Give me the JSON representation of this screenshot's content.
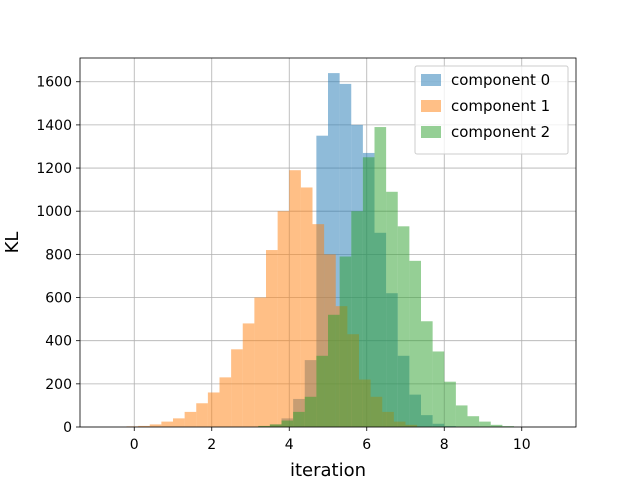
{
  "chart_data": {
    "type": "bar",
    "histogram": true,
    "title": "",
    "xlabel": "iteration",
    "ylabel": "KL",
    "xlim": [
      -1.4,
      11.4
    ],
    "ylim": [
      0,
      1710
    ],
    "xticks": [
      0,
      2,
      4,
      6,
      8,
      10
    ],
    "yticks": [
      0,
      200,
      400,
      600,
      800,
      1000,
      1200,
      1400,
      1600
    ],
    "grid": true,
    "legend_position": "top-right",
    "bin_width": 0.3,
    "series": [
      {
        "name": "component 0",
        "color": "#1f77b4",
        "alpha": 0.5,
        "bins": [
          {
            "x0": 3.2,
            "count": 3
          },
          {
            "x0": 3.5,
            "count": 12
          },
          {
            "x0": 3.8,
            "count": 40
          },
          {
            "x0": 4.1,
            "count": 130
          },
          {
            "x0": 4.4,
            "count": 310
          },
          {
            "x0": 4.7,
            "count": 1350
          },
          {
            "x0": 5.0,
            "count": 1640
          },
          {
            "x0": 5.3,
            "count": 1590
          },
          {
            "x0": 5.6,
            "count": 1400
          },
          {
            "x0": 5.9,
            "count": 1270
          },
          {
            "x0": 6.2,
            "count": 900
          },
          {
            "x0": 6.5,
            "count": 620
          },
          {
            "x0": 6.8,
            "count": 330
          },
          {
            "x0": 7.1,
            "count": 150
          },
          {
            "x0": 7.4,
            "count": 55
          },
          {
            "x0": 7.7,
            "count": 15
          },
          {
            "x0": 8.0,
            "count": 4
          }
        ]
      },
      {
        "name": "component 1",
        "color": "#ff7f0e",
        "alpha": 0.5,
        "bins": [
          {
            "x0": -0.2,
            "count": 3
          },
          {
            "x0": 0.1,
            "count": 5
          },
          {
            "x0": 0.4,
            "count": 12
          },
          {
            "x0": 0.7,
            "count": 25
          },
          {
            "x0": 1.0,
            "count": 40
          },
          {
            "x0": 1.3,
            "count": 70
          },
          {
            "x0": 1.6,
            "count": 110
          },
          {
            "x0": 1.9,
            "count": 160
          },
          {
            "x0": 2.2,
            "count": 230
          },
          {
            "x0": 2.5,
            "count": 360
          },
          {
            "x0": 2.8,
            "count": 480
          },
          {
            "x0": 3.1,
            "count": 600
          },
          {
            "x0": 3.4,
            "count": 820
          },
          {
            "x0": 3.7,
            "count": 1000
          },
          {
            "x0": 4.0,
            "count": 1190
          },
          {
            "x0": 4.3,
            "count": 1110
          },
          {
            "x0": 4.6,
            "count": 940
          },
          {
            "x0": 4.9,
            "count": 800
          },
          {
            "x0": 5.2,
            "count": 560
          },
          {
            "x0": 5.5,
            "count": 430
          },
          {
            "x0": 5.8,
            "count": 220
          },
          {
            "x0": 6.1,
            "count": 140
          },
          {
            "x0": 6.4,
            "count": 70
          },
          {
            "x0": 6.7,
            "count": 25
          },
          {
            "x0": 7.0,
            "count": 10
          }
        ]
      },
      {
        "name": "component 2",
        "color": "#2ca02c",
        "alpha": 0.5,
        "bins": [
          {
            "x0": 3.2,
            "count": 5
          },
          {
            "x0": 3.5,
            "count": 12
          },
          {
            "x0": 3.8,
            "count": 30
          },
          {
            "x0": 4.1,
            "count": 70
          },
          {
            "x0": 4.4,
            "count": 140
          },
          {
            "x0": 4.7,
            "count": 330
          },
          {
            "x0": 5.0,
            "count": 520
          },
          {
            "x0": 5.3,
            "count": 790
          },
          {
            "x0": 5.6,
            "count": 1000
          },
          {
            "x0": 5.9,
            "count": 1250
          },
          {
            "x0": 6.2,
            "count": 1390
          },
          {
            "x0": 6.5,
            "count": 1090
          },
          {
            "x0": 6.8,
            "count": 930
          },
          {
            "x0": 7.1,
            "count": 770
          },
          {
            "x0": 7.4,
            "count": 490
          },
          {
            "x0": 7.7,
            "count": 350
          },
          {
            "x0": 8.0,
            "count": 210
          },
          {
            "x0": 8.3,
            "count": 100
          },
          {
            "x0": 8.6,
            "count": 50
          },
          {
            "x0": 8.9,
            "count": 25
          },
          {
            "x0": 9.2,
            "count": 10
          },
          {
            "x0": 9.5,
            "count": 4
          }
        ]
      }
    ]
  }
}
